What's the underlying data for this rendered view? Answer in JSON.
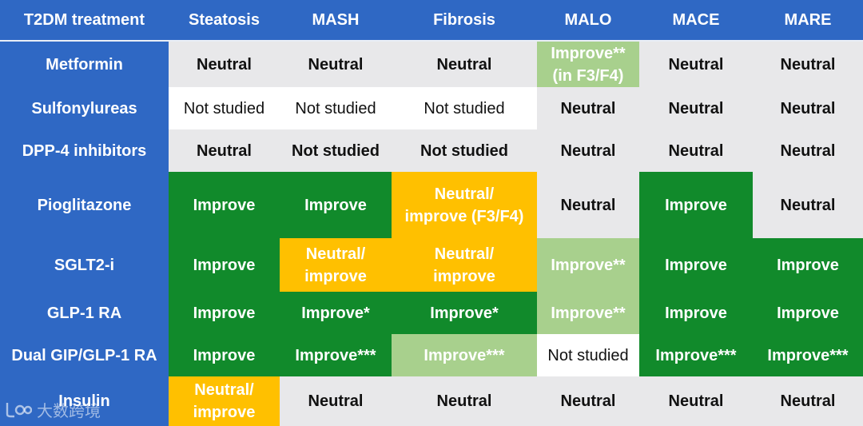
{
  "headers": [
    "T2DM treatment",
    "Steatosis",
    "MASH",
    "Fibrosis",
    "MALO",
    "MACE",
    "MARE"
  ],
  "rows": [
    {
      "label": "Metformin",
      "cells": [
        "Neutral",
        "Neutral",
        "Neutral",
        "Improve**\n(in F3/F4)",
        "Neutral",
        "Neutral"
      ]
    },
    {
      "label": "Sulfonylureas",
      "cells": [
        "Not studied",
        "Not studied",
        "Not studied",
        "Neutral",
        "Neutral",
        "Neutral"
      ]
    },
    {
      "label": "DPP-4 inhibitors",
      "cells": [
        "Neutral",
        "Not studied",
        "Not studied",
        "Neutral",
        "Neutral",
        "Neutral"
      ]
    },
    {
      "label": "Pioglitazone",
      "cells": [
        "Improve",
        "Improve",
        "Neutral/\nimprove (F3/F4)",
        "Neutral",
        "Improve",
        "Neutral"
      ]
    },
    {
      "label": "SGLT2-i",
      "cells": [
        "Improve",
        "Neutral/\nimprove",
        "Neutral/\nimprove",
        "Improve**",
        "Improve",
        "Improve"
      ]
    },
    {
      "label": "GLP-1 RA",
      "cells": [
        "Improve",
        "Improve*",
        "Improve*",
        "Improve**",
        "Improve",
        "Improve"
      ]
    },
    {
      "label": "Dual GIP/GLP-1 RA",
      "cells": [
        "Improve",
        "Improve***",
        "Improve***",
        "Not studied",
        "Improve***",
        "Improve***"
      ]
    },
    {
      "label": "Insulin",
      "cells": [
        "Neutral/\nimprove",
        "Neutral",
        "Neutral",
        "Neutral",
        "Neutral",
        "Neutral"
      ]
    }
  ],
  "colors": {
    "header_bg": "#2f68c4",
    "neutral_grey": "#e8e8ea",
    "improve_green": "#118a2b",
    "improve_light_green": "#a8d08d",
    "mixed_yellow": "#ffc000",
    "not_studied_white": "#ffffff"
  },
  "watermark": {
    "text": "大数跨境",
    "icon": "brand-logo-icon"
  }
}
